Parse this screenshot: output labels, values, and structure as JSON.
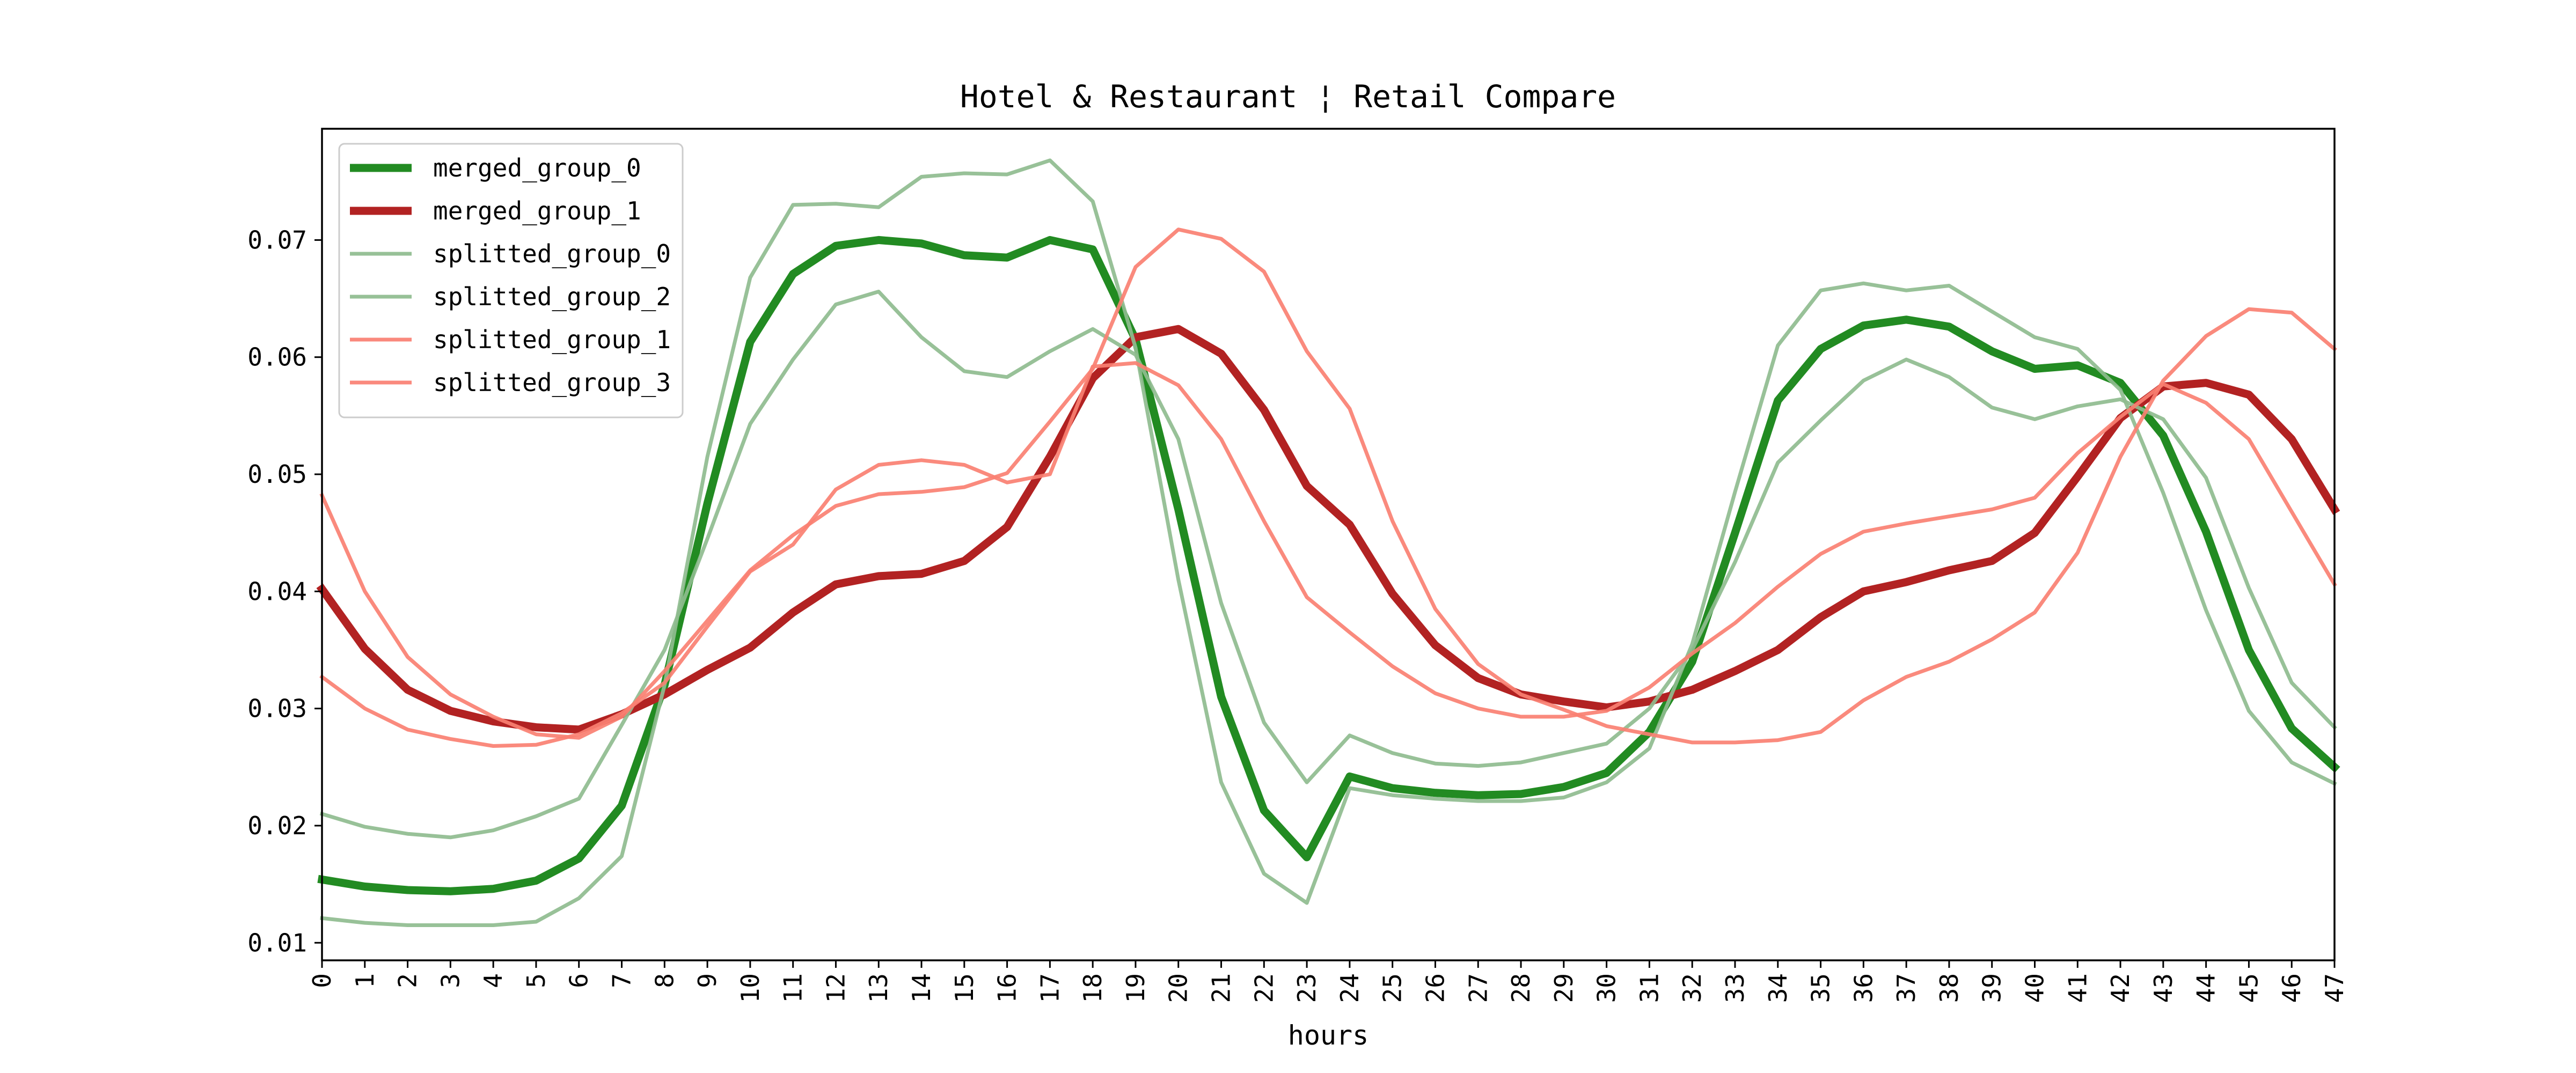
{
  "chart_data": {
    "type": "line",
    "title": "Hotel & Restaurant ¦ Retail Compare",
    "xlabel": "hours",
    "ylabel": "",
    "x": [
      0,
      1,
      2,
      3,
      4,
      5,
      6,
      7,
      8,
      9,
      10,
      11,
      12,
      13,
      14,
      15,
      16,
      17,
      18,
      19,
      20,
      21,
      22,
      23,
      24,
      25,
      26,
      27,
      28,
      29,
      30,
      31,
      32,
      33,
      34,
      35,
      36,
      37,
      38,
      39,
      40,
      41,
      42,
      43,
      44,
      45,
      46,
      47
    ],
    "xlim": [
      0,
      47
    ],
    "ylim": [
      0.0085,
      0.0795
    ],
    "yticks": [
      "0.01",
      "0.02",
      "0.03",
      "0.04",
      "0.05",
      "0.06",
      "0.07"
    ],
    "grid": false,
    "legend_position": "top-left",
    "series": [
      {
        "name": "merged_group_0",
        "color": "#228b22",
        "width": "thick",
        "values": [
          0.0154,
          0.0148,
          0.0145,
          0.0144,
          0.0146,
          0.0153,
          0.0172,
          0.0217,
          0.032,
          0.0475,
          0.0613,
          0.0671,
          0.0695,
          0.07,
          0.0697,
          0.0687,
          0.0685,
          0.07,
          0.0692,
          0.0615,
          0.047,
          0.031,
          0.0213,
          0.0173,
          0.0242,
          0.0232,
          0.0228,
          0.0226,
          0.0227,
          0.0233,
          0.0245,
          0.028,
          0.034,
          0.045,
          0.0563,
          0.0607,
          0.0627,
          0.0632,
          0.0626,
          0.0605,
          0.059,
          0.0593,
          0.0578,
          0.0533,
          0.0451,
          0.035,
          0.0283,
          0.025
        ]
      },
      {
        "name": "merged_group_1",
        "color": "#b22222",
        "width": "thick",
        "values": [
          0.0402,
          0.0351,
          0.0316,
          0.0298,
          0.0289,
          0.0284,
          0.0282,
          0.0295,
          0.0312,
          0.0333,
          0.0352,
          0.0382,
          0.0406,
          0.0413,
          0.0415,
          0.0426,
          0.0455,
          0.0515,
          0.0582,
          0.0617,
          0.0624,
          0.0603,
          0.0555,
          0.049,
          0.0457,
          0.0398,
          0.0354,
          0.0326,
          0.0312,
          0.0306,
          0.0301,
          0.0306,
          0.0316,
          0.0332,
          0.035,
          0.0378,
          0.04,
          0.0408,
          0.0418,
          0.0426,
          0.045,
          0.0498,
          0.0548,
          0.0575,
          0.0578,
          0.0568,
          0.053,
          0.047
        ]
      },
      {
        "name": "splitted_group_0",
        "color": "#8fbc8f",
        "width": "thin",
        "values": [
          0.021,
          0.0199,
          0.0193,
          0.019,
          0.0196,
          0.0208,
          0.0223,
          0.0286,
          0.035,
          0.0445,
          0.0543,
          0.0598,
          0.0645,
          0.0656,
          0.0617,
          0.0588,
          0.0583,
          0.0605,
          0.0624,
          0.0602,
          0.053,
          0.039,
          0.0288,
          0.0237,
          0.0277,
          0.0262,
          0.0253,
          0.0251,
          0.0254,
          0.0262,
          0.027,
          0.03,
          0.035,
          0.0425,
          0.051,
          0.0546,
          0.058,
          0.0598,
          0.0583,
          0.0557,
          0.0547,
          0.0558,
          0.0564,
          0.0547,
          0.0497,
          0.0403,
          0.0322,
          0.0284
        ]
      },
      {
        "name": "splitted_group_2",
        "color": "#8fbc8f",
        "width": "thin",
        "values": [
          0.0121,
          0.0117,
          0.0115,
          0.0115,
          0.0115,
          0.0118,
          0.0138,
          0.0174,
          0.032,
          0.0515,
          0.0668,
          0.073,
          0.0731,
          0.0728,
          0.0754,
          0.0757,
          0.0756,
          0.0768,
          0.0733,
          0.0608,
          0.041,
          0.0237,
          0.0159,
          0.0134,
          0.0232,
          0.0226,
          0.0223,
          0.0221,
          0.0221,
          0.0224,
          0.0237,
          0.0266,
          0.0355,
          0.0485,
          0.061,
          0.0657,
          0.0663,
          0.0657,
          0.0661,
          0.0639,
          0.0617,
          0.0607,
          0.0572,
          0.0484,
          0.0384,
          0.0298,
          0.0254,
          0.0236
        ]
      },
      {
        "name": "splitted_group_1",
        "color": "#fa8072",
        "width": "thin",
        "values": [
          0.0482,
          0.04,
          0.0344,
          0.0312,
          0.0293,
          0.0278,
          0.0275,
          0.0293,
          0.0332,
          0.0375,
          0.0418,
          0.0448,
          0.0473,
          0.0483,
          0.0485,
          0.0489,
          0.0501,
          0.0545,
          0.059,
          0.0677,
          0.0709,
          0.0701,
          0.0673,
          0.0605,
          0.0556,
          0.046,
          0.0385,
          0.0338,
          0.0312,
          0.0299,
          0.0285,
          0.0278,
          0.0271,
          0.0271,
          0.0273,
          0.028,
          0.0307,
          0.0327,
          0.034,
          0.0359,
          0.0382,
          0.0433,
          0.0515,
          0.058,
          0.0618,
          0.0641,
          0.0638,
          0.0607
        ]
      },
      {
        "name": "splitted_group_3",
        "color": "#fa8072",
        "width": "thin",
        "values": [
          0.0327,
          0.03,
          0.0282,
          0.0274,
          0.0268,
          0.0269,
          0.0278,
          0.0296,
          0.0322,
          0.037,
          0.0417,
          0.044,
          0.0487,
          0.0508,
          0.0512,
          0.0508,
          0.0493,
          0.05,
          0.0592,
          0.0595,
          0.0576,
          0.053,
          0.046,
          0.0395,
          0.0365,
          0.0336,
          0.0313,
          0.03,
          0.0293,
          0.0293,
          0.0298,
          0.0318,
          0.0347,
          0.0373,
          0.0404,
          0.0432,
          0.0451,
          0.0458,
          0.0464,
          0.047,
          0.048,
          0.0518,
          0.0549,
          0.0577,
          0.0561,
          0.053,
          0.0468,
          0.0406
        ]
      }
    ]
  }
}
